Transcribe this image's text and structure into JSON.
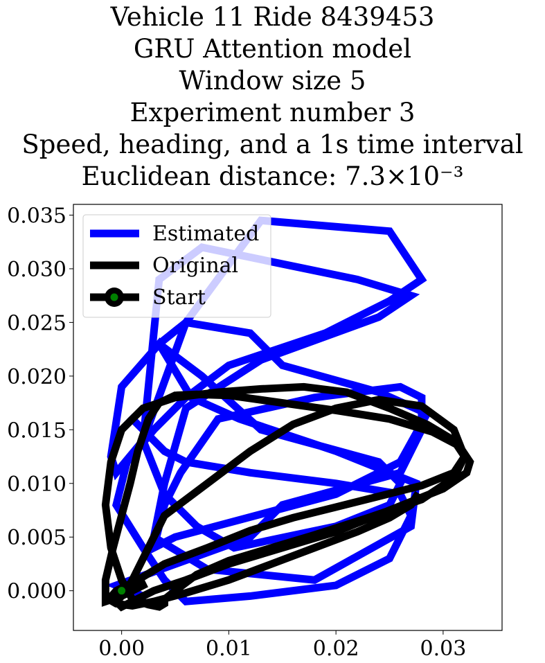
{
  "title_lines": [
    "Vehicle 11 Ride 8439453",
    "GRU Attention model",
    "Window size 5",
    "Experiment number 3",
    "Speed, heading, and a 1s time interval",
    "Euclidean distance: 7.3×10⁻³"
  ],
  "chart_data": {
    "type": "line",
    "title": "Vehicle 11 Ride 8439453 / GRU Attention model / Window size 5 / Experiment number 3 / Speed, heading, and a 1s time interval / Euclidean distance: 7.3×10⁻³",
    "xlabel": "",
    "ylabel": "",
    "xlim": [
      -0.0045,
      0.0355
    ],
    "ylim": [
      -0.0037,
      0.036
    ],
    "xticks": [
      0.0,
      0.01,
      0.02,
      0.03
    ],
    "xtick_labels": [
      "0.00",
      "0.01",
      "0.02",
      "0.03"
    ],
    "yticks": [
      0.0,
      0.005,
      0.01,
      0.015,
      0.02,
      0.025,
      0.03,
      0.035
    ],
    "ytick_labels": [
      "0.000",
      "0.005",
      "0.010",
      "0.015",
      "0.020",
      "0.025",
      "0.030",
      "0.035"
    ],
    "grid": false,
    "legend_position": "top-left",
    "series": [
      {
        "name": "Estimated",
        "color": "#0000ff",
        "x": [
          0.002,
          -0.0005,
          0.012,
          0.015,
          0.026,
          0.028,
          0.028,
          0.026,
          0.018,
          0.009,
          0.0055,
          0.004,
          0.003,
          0.005,
          0.02,
          0.026,
          0.0285,
          0.024,
          0.015,
          0.012,
          0.006,
          0.0035,
          0.0075,
          0.013,
          0.024,
          0.026,
          0.025,
          0.02,
          0.0105,
          0.007,
          0.004,
          0.002,
          0.0035,
          0.0075,
          0.022,
          0.027,
          0.024,
          0.013,
          0.006,
          0.004,
          0.003,
          0.008,
          0.018,
          0.027,
          0.0275,
          0.02,
          0.011,
          0.0065,
          0.0035,
          0.0,
          -0.001,
          -0.0005,
          0.002,
          0.006,
          0.013,
          0.025,
          0.028,
          0.025,
          0.019,
          0.01,
          0.006,
          0.003,
          0.0005,
          -0.0005,
          0.002,
          0.004,
          0.006,
          0.012,
          0.02,
          0.025,
          0.027,
          0.026,
          0.02,
          0.012,
          0.006,
          0.004,
          0.002,
          0.001
        ],
        "y": [
          -0.0005,
          0.0005,
          0.005,
          0.008,
          0.011,
          0.015,
          0.018,
          0.019,
          0.018,
          0.016,
          0.011,
          0.008,
          0.004,
          0.005,
          0.009,
          0.012,
          0.0165,
          0.0185,
          0.021,
          0.024,
          0.025,
          0.023,
          0.02,
          0.015,
          0.012,
          0.01,
          0.008,
          0.006,
          0.004,
          0.006,
          0.009,
          0.014,
          0.029,
          0.032,
          0.029,
          0.0275,
          0.0255,
          0.0215,
          0.017,
          0.01,
          0.005,
          0.002,
          0.001,
          0.006,
          0.01,
          0.013,
          0.016,
          0.018,
          0.023,
          0.019,
          0.0125,
          0.011,
          0.014,
          0.025,
          0.0345,
          0.0335,
          0.029,
          0.027,
          0.024,
          0.021,
          0.018,
          0.015,
          0.012,
          0.008,
          0.004,
          0.001,
          -0.001,
          -0.0005,
          0.0005,
          0.003,
          0.007,
          0.009,
          0.01,
          0.011,
          0.012,
          0.013,
          0.015,
          0.016
        ]
      },
      {
        "name": "Original",
        "color": "#000000",
        "x": [
          0.002,
          0.0,
          -0.0015,
          -0.0015,
          -0.0008,
          0.0,
          0.0008,
          0.0015,
          0.0025,
          0.0035,
          0.005,
          0.007,
          0.01,
          0.015,
          0.02,
          0.025,
          0.029,
          0.0315,
          0.0325,
          0.0322,
          0.03,
          0.025,
          0.02,
          0.015,
          0.01,
          0.006,
          0.003,
          0.001,
          0.0,
          -0.0005,
          0.0005,
          0.002,
          0.004,
          0.008,
          0.012,
          0.016,
          0.02,
          0.024,
          0.028,
          0.031,
          0.032,
          0.031,
          0.028,
          0.023,
          0.018,
          0.014,
          0.01,
          0.007,
          0.005,
          0.004,
          0.004,
          0.0035,
          0.0025,
          0.001,
          0.0,
          -0.001,
          -0.0015,
          -0.001,
          0.0,
          0.002,
          0.005,
          0.009,
          0.013,
          0.017,
          0.021,
          0.025,
          0.0285,
          0.031,
          0.032,
          0.031,
          0.028,
          0.024,
          0.02,
          0.016,
          0.012,
          0.008,
          0.004,
          0.0015,
          -0.0005,
          -0.0012,
          -0.0005,
          0.001,
          0.003,
          0.006,
          0.01,
          0.014,
          0.018,
          0.022,
          0.025,
          0.027,
          0.0275
        ],
        "y": [
          0.0005,
          -0.0005,
          -0.001,
          0.001,
          0.004,
          0.007,
          0.01,
          0.013,
          0.016,
          0.0175,
          0.0182,
          0.0183,
          0.0182,
          0.0175,
          0.0168,
          0.016,
          0.0148,
          0.0135,
          0.012,
          0.011,
          0.0095,
          0.0075,
          0.0055,
          0.004,
          0.0025,
          0.001,
          0.0,
          -0.001,
          -0.0015,
          -0.001,
          0.0,
          0.003,
          0.007,
          0.01,
          0.013,
          0.0155,
          0.017,
          0.0178,
          0.0172,
          0.015,
          0.0125,
          0.0105,
          0.0085,
          0.0068,
          0.0052,
          0.004,
          0.0028,
          0.0015,
          0.0,
          -0.0008,
          -0.0012,
          -0.0015,
          -0.0013,
          -0.0008,
          0.001,
          0.004,
          0.008,
          0.012,
          0.015,
          0.017,
          0.018,
          0.0185,
          0.0188,
          0.019,
          0.0185,
          0.017,
          0.0155,
          0.014,
          0.0125,
          0.011,
          0.0098,
          0.0088,
          0.0078,
          0.0068,
          0.0056,
          0.004,
          0.0025,
          0.001,
          0.0,
          -0.0008,
          -0.0012,
          -0.0014,
          -0.001,
          -0.0002,
          0.001,
          0.0025,
          0.004,
          0.0055,
          0.0068,
          0.008,
          0.0088
        ]
      }
    ],
    "start_point": {
      "name": "Start",
      "x": 0.0,
      "y": 0.0,
      "color": "#008000"
    },
    "legend": [
      "Estimated",
      "Original",
      "Start"
    ]
  }
}
